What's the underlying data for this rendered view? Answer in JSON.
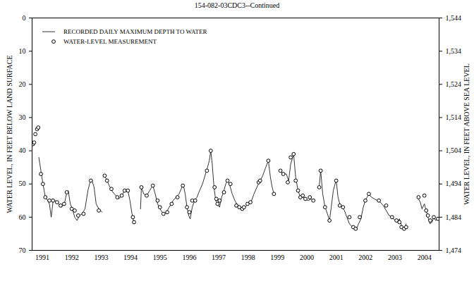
{
  "chart_data": {
    "type": "line",
    "title": "154-082-03CDC3--Continued",
    "y_label": "WATER LEVEL, IN FEET BELOW LAND SURFACE",
    "y2_label": "WATER LEVEL, IN FEET ABOVE SEA LEVEL",
    "legend": "top-left",
    "grid": false,
    "xlim": [
      1991.15,
      2005.0
    ],
    "xticks": [
      {
        "value": 1991.5,
        "label": "1991"
      },
      {
        "value": 1992.5,
        "label": "1992"
      },
      {
        "value": 1993.5,
        "label": "1993"
      },
      {
        "value": 1994.5,
        "label": "1994"
      },
      {
        "value": 1995.5,
        "label": "1995"
      },
      {
        "value": 1996.5,
        "label": "1996"
      },
      {
        "value": 1997.5,
        "label": "1997"
      },
      {
        "value": 1998.5,
        "label": "1998"
      },
      {
        "value": 1999.5,
        "label": "1999"
      },
      {
        "value": 2000.5,
        "label": "2000"
      },
      {
        "value": 2001.5,
        "label": "2001"
      },
      {
        "value": 2002.5,
        "label": "2002"
      },
      {
        "value": 2003.5,
        "label": "2003"
      },
      {
        "value": 2004.5,
        "label": "2004"
      }
    ],
    "ylim": [
      70,
      0
    ],
    "yticks": [
      0,
      10,
      20,
      30,
      40,
      50,
      60,
      70
    ],
    "y2lim": [
      1474,
      1544
    ],
    "y2ticks": [
      {
        "value": 1474,
        "label": "1,474"
      },
      {
        "value": 1484,
        "label": "1,484"
      },
      {
        "value": 1494,
        "label": "1,494"
      },
      {
        "value": 1504,
        "label": "1,504"
      },
      {
        "value": 1514,
        "label": "1,514"
      },
      {
        "value": 1524,
        "label": "1,524"
      },
      {
        "value": 1534,
        "label": "1,534"
      },
      {
        "value": 1544,
        "label": "1,544"
      }
    ],
    "series": [
      {
        "name": "RECORDED DAILY MAXIMUM DEPTH TO WATER",
        "type": "line",
        "color": "#000000",
        "line_style": "solid",
        "x": [
          1991.38,
          1991.45,
          1991.52,
          1991.6,
          1991.68,
          1991.74,
          1991.8,
          1991.86,
          1991.95,
          1992.05,
          1992.15,
          1992.25,
          1992.33,
          1992.38,
          1992.45,
          1992.52,
          1992.6,
          1992.68,
          1992.76,
          1992.85,
          1992.95,
          1993.05,
          1993.12,
          1993.19,
          1993.26,
          1993.33,
          1993.42,
          1993.53,
          1993.56,
          1993.62,
          1993.7,
          1993.8,
          1993.9,
          1994.0,
          1994.1,
          1994.2,
          1994.3,
          1994.41,
          1994.48,
          1994.55,
          1994.62,
          1994.7,
          1994.84,
          1994.87,
          1994.95,
          1995.05,
          1995.15,
          1995.26,
          1995.34,
          1995.42,
          1995.5,
          1995.58,
          1995.66,
          1995.75,
          1995.85,
          1995.95,
          1996.05,
          1996.15,
          1996.25,
          1996.3,
          1996.36,
          1996.42,
          1996.48,
          1996.53,
          1996.6,
          1996.68,
          1996.76,
          1996.85,
          1996.95,
          1997.05,
          1997.12,
          1997.18,
          1997.23,
          1997.28,
          1997.34,
          1997.4,
          1997.46,
          1997.53,
          1997.6,
          1997.68,
          1997.74,
          1997.8,
          1997.88,
          1997.96,
          1998.05,
          1998.15,
          1998.23,
          1998.31,
          1998.4,
          1998.5,
          1998.6,
          1998.7,
          1998.8,
          1998.91,
          1999.0,
          1999.1,
          1999.19,
          1999.26,
          1999.32,
          1999.38,
          1999.48,
          1999.6,
          1999.7,
          1999.8,
          1999.88,
          1999.95,
          2000.05,
          2000.12,
          2000.2,
          2000.28,
          2000.36,
          2000.45,
          2000.55,
          2000.65,
          2000.72,
          2000.8,
          2000.92,
          2000.97,
          2001.04,
          2001.12,
          2001.2,
          2001.27,
          2001.33,
          2001.4,
          2001.46,
          2001.5,
          2001.56,
          2001.62,
          2001.7,
          2001.78,
          2001.86,
          2001.95,
          2002.05,
          2002.12,
          2002.19,
          2002.26,
          2002.34,
          2002.42,
          2002.49,
          2002.55,
          2002.61,
          2002.7,
          2002.8,
          2002.9,
          2003.0,
          2003.1,
          2003.2,
          2003.3,
          2003.4,
          2003.5,
          2003.58,
          2003.65,
          2003.72,
          2003.81,
          2003.88,
          2004.0,
          2004.3,
          2004.36,
          2004.42,
          2004.5,
          2004.56,
          2004.62,
          2004.69,
          2004.76,
          2004.82,
          2004.88,
          2004.96
        ],
        "values": [
          42,
          46,
          50,
          54,
          55,
          56,
          60,
          55.5,
          55,
          56,
          57,
          56,
          52.5,
          52,
          56,
          57.5,
          60,
          61,
          59.5,
          59,
          57.5,
          52,
          49.5,
          49,
          51,
          56,
          57.5,
          58.5,
          null,
          47.5,
          49,
          51,
          52.5,
          53.5,
          54.5,
          53.5,
          52,
          52,
          55,
          59,
          62,
          null,
          57.5,
          51,
          53,
          53.5,
          52,
          50.5,
          53,
          56,
          57.5,
          58.5,
          59,
          58,
          56.5,
          55,
          54,
          53,
          51,
          50.5,
          53,
          57,
          59.5,
          60.5,
          57,
          55,
          54,
          52,
          50,
          47,
          45,
          43,
          40,
          44,
          51,
          55,
          56,
          57,
          54,
          52,
          50,
          49,
          50.5,
          53,
          55,
          56.5,
          57.5,
          58,
          57,
          56,
          55.5,
          53,
          51,
          49,
          47.5,
          45,
          43,
          48,
          51,
          53,
          null,
          46,
          47,
          47,
          49,
          44,
          41,
          48,
          52,
          54,
          54,
          54.5,
          55,
          54.5,
          55,
          null,
          51,
          46,
          53,
          57,
          59,
          61,
          57,
          52,
          50,
          49,
          54,
          56,
          57,
          58,
          60,
          62,
          63,
          63.5,
          63.5,
          62,
          60.5,
          57,
          55,
          54,
          53,
          54,
          54.5,
          55,
          55.5,
          56.5,
          58,
          59.5,
          60,
          61,
          61.5,
          60.5,
          62.5,
          63.5,
          62,
          null,
          54.5,
          55.5,
          57.5,
          56,
          58,
          60,
          62,
          61.5,
          60,
          61,
          60.5
        ]
      },
      {
        "name": "WATER-LEVEL MEASUREMENT",
        "type": "scatter",
        "marker": "circle",
        "color": "#000000",
        "x": [
          1991.18,
          1991.22,
          1991.26,
          1991.32,
          1991.36,
          1991.45,
          1991.52,
          1991.6,
          1991.74,
          1991.86,
          1992.0,
          1992.12,
          1992.24,
          1992.33,
          1992.5,
          1992.6,
          1992.72,
          1992.9,
          1993.15,
          1993.42,
          1993.62,
          1993.7,
          1993.85,
          1994.05,
          1994.2,
          1994.3,
          1994.41,
          1994.58,
          1994.62,
          1994.87,
          1995.05,
          1995.26,
          1995.42,
          1995.5,
          1995.62,
          1995.75,
          1995.9,
          1996.1,
          1996.28,
          1996.42,
          1996.5,
          1996.6,
          1996.7,
          1997.1,
          1997.23,
          1997.36,
          1997.42,
          1997.46,
          1997.53,
          1997.68,
          1997.8,
          1997.9,
          1998.1,
          1998.2,
          1998.3,
          1998.36,
          1998.48,
          1998.58,
          1998.86,
          1998.91,
          1999.19,
          1999.38,
          1999.6,
          1999.7,
          1999.85,
          1999.95,
          2000.05,
          2000.12,
          2000.2,
          2000.28,
          2000.36,
          2000.45,
          2000.6,
          2000.72,
          2000.92,
          2000.97,
          2001.12,
          2001.27,
          2001.5,
          2001.62,
          2001.73,
          2001.95,
          2002.08,
          2002.16,
          2002.3,
          2002.49,
          2002.61,
          2002.95,
          2003.2,
          2003.4,
          2003.55,
          2003.65,
          2003.72,
          2003.81,
          2003.88,
          2004.3,
          2004.5,
          2004.56,
          2004.62,
          2004.7,
          2004.82,
          2004.96
        ],
        "values": [
          38,
          37.5,
          35,
          33.5,
          33,
          47,
          50,
          54,
          55,
          55,
          55.5,
          56.5,
          56,
          52.5,
          57.5,
          58,
          59.5,
          59,
          49,
          58,
          47.5,
          49,
          51.5,
          54,
          53.5,
          52,
          52,
          60,
          61.5,
          51,
          53.5,
          50.5,
          55,
          57,
          59,
          58.5,
          56,
          54,
          50.5,
          57,
          58.5,
          55,
          55,
          46,
          40,
          51,
          54.5,
          56,
          55,
          52.5,
          49,
          50,
          56.5,
          57,
          57.5,
          57,
          56,
          55.5,
          49.5,
          49,
          43,
          53,
          46,
          47,
          49.5,
          42,
          41,
          49,
          52,
          54,
          53.5,
          54.5,
          54,
          55,
          51,
          46,
          57,
          61,
          49,
          56.5,
          57,
          60,
          63,
          63.5,
          60,
          55,
          53,
          55,
          56.5,
          60,
          61,
          61.5,
          63,
          63.5,
          63,
          54,
          53.5,
          58,
          59.5,
          61,
          60,
          60.5
        ]
      }
    ]
  }
}
